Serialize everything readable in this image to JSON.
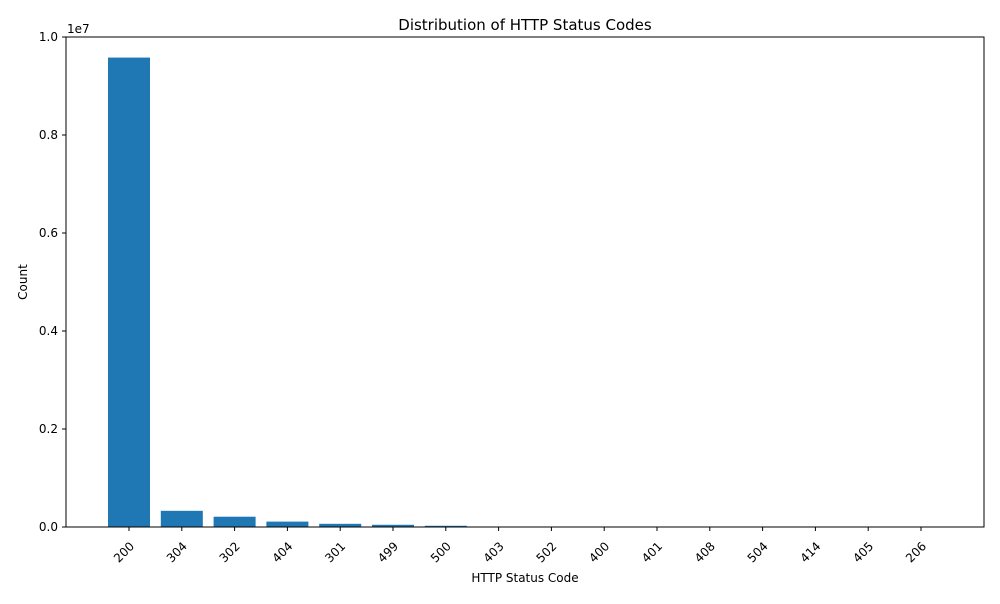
{
  "chart_data": {
    "type": "bar",
    "title": "Distribution of HTTP Status Codes",
    "xlabel": "HTTP Status Code",
    "ylabel": "Count",
    "y_offset_label": "1e7",
    "categories": [
      "200",
      "304",
      "302",
      "404",
      "301",
      "499",
      "500",
      "403",
      "502",
      "400",
      "401",
      "408",
      "504",
      "414",
      "405",
      "206"
    ],
    "values": [
      9580000,
      330000,
      210000,
      110000,
      65000,
      45000,
      25000,
      8000,
      5000,
      3000,
      2000,
      1500,
      1000,
      500,
      300,
      100
    ],
    "ylim": [
      0,
      10000000
    ],
    "yticks": [
      0,
      2000000,
      4000000,
      6000000,
      8000000,
      10000000
    ],
    "ytick_labels": [
      "0.0",
      "0.2",
      "0.4",
      "0.6",
      "0.8",
      "1.0"
    ],
    "bar_color": "#1f77b4",
    "grid": false,
    "legend": "none"
  }
}
